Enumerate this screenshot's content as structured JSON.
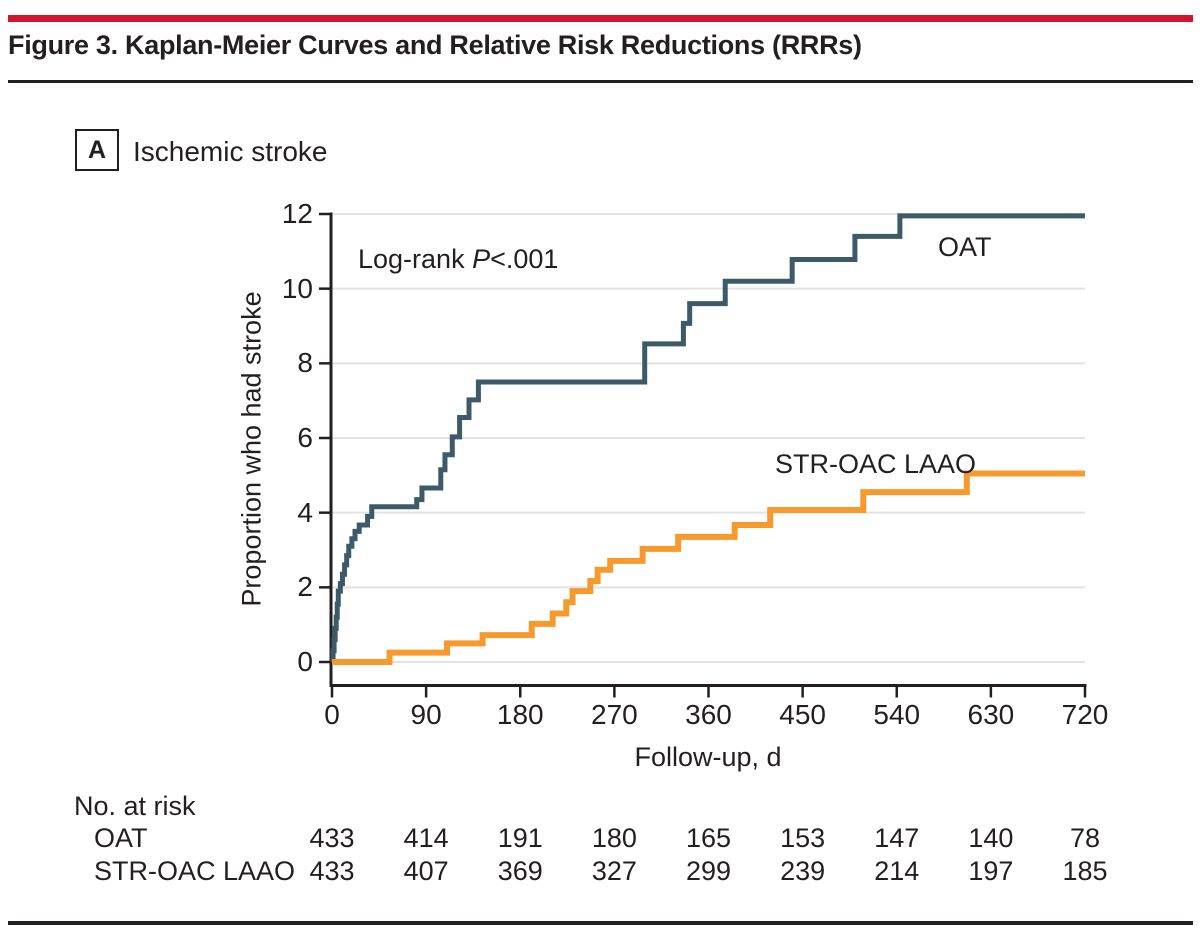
{
  "figure": {
    "title": "Figure 3. Kaplan-Meier Curves and Relative Risk Reductions (RRRs)",
    "panel_label": "A",
    "panel_title": "Ischemic stroke",
    "log_rank": {
      "prefix": "Log-rank ",
      "stat": "P",
      "value": "<.001"
    }
  },
  "colors": {
    "accent_red": "#D5152F",
    "rule_black": "#231F20",
    "gridline": "#E2E2E2",
    "oat_line": "#3D5A68",
    "laao_line": "#F79A2E",
    "text": "#231F20"
  },
  "chart_data": {
    "type": "line",
    "subtype": "kaplan-meier-step",
    "title": "Ischemic stroke",
    "xlabel": "Follow-up, d",
    "ylabel": "Proportion who had stroke",
    "xlim": [
      0,
      720
    ],
    "ylim": [
      0,
      12
    ],
    "x_ticks": [
      0,
      90,
      180,
      270,
      360,
      450,
      540,
      630,
      720
    ],
    "y_ticks": [
      0,
      2,
      4,
      6,
      8,
      10,
      12
    ],
    "grid": "horizontal",
    "legend_position": "inline-labels",
    "annotation": "Log-rank P<.001",
    "end_day": 720,
    "series": [
      {
        "name": "OAT",
        "color": "#3D5A68",
        "line_width": 5,
        "steps": [
          [
            0,
            0
          ],
          [
            1,
            0.3
          ],
          [
            2,
            0.6
          ],
          [
            3,
            0.9
          ],
          [
            4,
            1.2
          ],
          [
            5,
            1.55
          ],
          [
            6,
            1.9
          ],
          [
            8,
            2.1
          ],
          [
            10,
            2.35
          ],
          [
            12,
            2.6
          ],
          [
            14,
            2.85
          ],
          [
            16,
            3.1
          ],
          [
            19,
            3.3
          ],
          [
            22,
            3.5
          ],
          [
            26,
            3.67
          ],
          [
            34,
            3.9
          ],
          [
            38,
            4.16
          ],
          [
            81,
            4.35
          ],
          [
            86,
            4.66
          ],
          [
            104,
            5.15
          ],
          [
            108,
            5.55
          ],
          [
            115,
            6.03
          ],
          [
            122,
            6.55
          ],
          [
            131,
            7.02
          ],
          [
            140,
            7.5
          ],
          [
            299,
            8.52
          ],
          [
            336,
            9.07
          ],
          [
            342,
            9.6
          ],
          [
            376,
            10.2
          ],
          [
            440,
            10.78
          ],
          [
            500,
            11.4
          ],
          [
            543,
            11.95
          ]
        ]
      },
      {
        "name": "STR-OAC LAAO",
        "color": "#F79A2E",
        "line_width": 6,
        "steps": [
          [
            0,
            0
          ],
          [
            55,
            0.25
          ],
          [
            110,
            0.5
          ],
          [
            144,
            0.72
          ],
          [
            191,
            1.02
          ],
          [
            211,
            1.3
          ],
          [
            224,
            1.6
          ],
          [
            230,
            1.9
          ],
          [
            247,
            2.17
          ],
          [
            254,
            2.47
          ],
          [
            266,
            2.71
          ],
          [
            297,
            3.03
          ],
          [
            331,
            3.35
          ],
          [
            385,
            3.67
          ],
          [
            419,
            4.07
          ],
          [
            508,
            4.55
          ],
          [
            607,
            5.05
          ]
        ]
      }
    ]
  },
  "risk_table": {
    "heading": "No. at risk",
    "times": [
      0,
      90,
      180,
      270,
      360,
      450,
      540,
      630,
      720
    ],
    "rows": [
      {
        "label": "OAT",
        "counts": [
          "433",
          "414",
          "191",
          "180",
          "165",
          "153",
          "147",
          "140",
          "78"
        ]
      },
      {
        "label": "STR-OAC LAAO",
        "counts": [
          "433",
          "407",
          "369",
          "327",
          "299",
          "239",
          "214",
          "197",
          "185"
        ]
      }
    ]
  }
}
